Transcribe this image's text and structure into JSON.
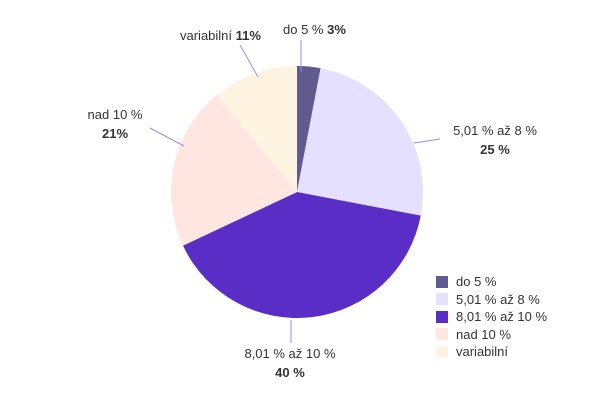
{
  "chart_data": {
    "type": "pie",
    "categories": [
      "do 5 %",
      "5,01 % až 8 %",
      "8,01 % až 10 %",
      "nad 10 %",
      "variabilní"
    ],
    "legend_labels": [
      "do 5 %",
      "5,01 % až 8 %",
      "8,01 % až 10 %",
      "nad 10 %",
      "variabilní"
    ],
    "values": [
      3,
      25,
      40,
      21,
      11
    ],
    "value_labels": [
      "3%",
      "25 %",
      "40 %",
      "21%",
      "11%"
    ],
    "colors": [
      "#615a8f",
      "#e6e0ff",
      "#5a2ec6",
      "#ffe6e1",
      "#fff4e1"
    ],
    "leader_color": "#9d8ee8",
    "legend_position": "bottom-right",
    "start_angle": "top, clockwise"
  }
}
